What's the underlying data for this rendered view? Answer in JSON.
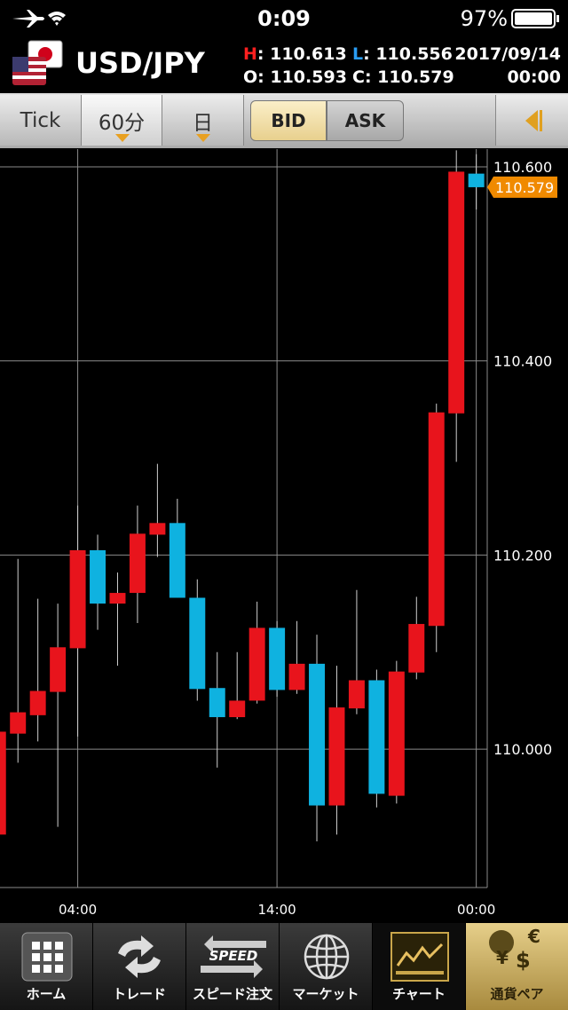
{
  "status_bar": {
    "time": "0:09",
    "battery": "97%"
  },
  "header": {
    "pair": "USD/JPY",
    "quotes": [
      {
        "key": "H",
        "text": ": 110.613"
      },
      {
        "key": "L",
        "text": ": 110.556"
      },
      {
        "key": "O",
        "text": ": 110.593"
      },
      {
        "key": "C",
        "text": ": 110.579"
      }
    ],
    "date": "2017/09/14",
    "time": "00:00"
  },
  "toolbar": {
    "period_buttons": [
      "Tick",
      "60分",
      "日"
    ],
    "price_buttons": [
      "BID",
      "ASK"
    ]
  },
  "chart_data": {
    "type": "candlestick",
    "x": [
      0,
      1,
      2,
      3,
      4,
      5,
      6,
      7,
      8,
      9,
      10,
      11,
      12,
      13,
      14,
      15,
      16,
      17,
      18,
      19,
      20,
      21,
      22,
      23,
      24
    ],
    "open": [
      109.912,
      110.016,
      110.035,
      110.059,
      110.104,
      110.205,
      110.15,
      110.161,
      110.221,
      110.233,
      110.156,
      110.063,
      110.033,
      110.05,
      110.125,
      110.061,
      110.088,
      109.942,
      110.042,
      110.071,
      109.952,
      110.079,
      110.127,
      110.346,
      110.593
    ],
    "high": [
      110.018,
      110.196,
      110.155,
      110.15,
      110.251,
      110.221,
      110.182,
      110.251,
      110.294,
      110.258,
      110.175,
      110.1,
      110.1,
      110.152,
      110.132,
      110.132,
      110.118,
      110.086,
      110.164,
      110.082,
      110.091,
      110.157,
      110.356,
      110.617,
      110.613
    ],
    "low": [
      109.912,
      109.986,
      110.008,
      109.92,
      110.013,
      110.123,
      110.086,
      110.13,
      110.198,
      110.156,
      110.05,
      109.981,
      110.031,
      110.047,
      110.054,
      110.057,
      109.905,
      109.912,
      110.036,
      109.94,
      109.944,
      110.072,
      110.1,
      110.296,
      110.556
    ],
    "close": [
      110.018,
      110.038,
      110.06,
      110.105,
      110.205,
      110.15,
      110.161,
      110.222,
      110.233,
      110.156,
      110.062,
      110.033,
      110.05,
      110.125,
      110.061,
      110.088,
      109.942,
      110.043,
      110.071,
      109.954,
      110.08,
      110.129,
      110.347,
      110.595,
      110.579
    ],
    "xlim": [
      0.1,
      24.55
    ],
    "xticks": [
      {
        "value": 4,
        "label": "04:00"
      },
      {
        "value": 14,
        "label": "14:00"
      },
      {
        "value": 24,
        "label": "00:00"
      }
    ],
    "ylim": [
      109.857,
      110.62
    ],
    "yticks": [
      {
        "value": 110.0,
        "label": "110.000"
      },
      {
        "value": 110.2,
        "label": "110.200"
      },
      {
        "value": 110.4,
        "label": "110.400"
      },
      {
        "value": 110.6,
        "label": "110.600"
      }
    ],
    "grid": true,
    "up_color": "#e8141c",
    "down_color": "#0fb2e0"
  },
  "tab_bar": {
    "tabs": [
      "ホーム",
      "トレード",
      "スピード注文",
      "マーケット",
      "チャート",
      "通貨ペア"
    ],
    "speed_icon": "SPEED",
    "currency_icon": [
      "€",
      "¥",
      "$"
    ]
  }
}
